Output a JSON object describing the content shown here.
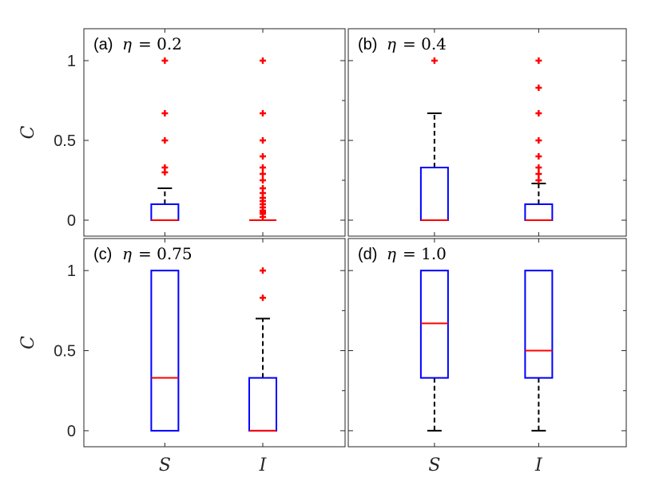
{
  "chart_data": {
    "type": "boxplot",
    "ylabel": "C",
    "categories": [
      "S",
      "I"
    ],
    "ylim": [
      -0.1,
      1.2
    ],
    "yticks": [
      0,
      0.5,
      1
    ],
    "yticklabels": [
      "0",
      "0.5",
      "1"
    ],
    "colors": {
      "box": "#0000ff",
      "median": "#ff0000",
      "whisker": "#000000",
      "outlier": "#ff0000",
      "axes": "#262626"
    },
    "panels": [
      {
        "tag": "(a)",
        "eta_symbol": "η",
        "eta_eq": "= 0.2",
        "boxes": [
          {
            "category": "S",
            "q1": 0,
            "median": 0,
            "q3": 0.1,
            "whisker_low": 0,
            "whisker_high": 0.2,
            "outliers": [
              0.3,
              0.33,
              0.5,
              0.67,
              1.0
            ]
          },
          {
            "category": "I",
            "q1": 0,
            "median": 0,
            "q3": 0,
            "whisker_low": 0,
            "whisker_high": 0,
            "outliers": [
              0.02,
              0.04,
              0.05,
              0.06,
              0.08,
              0.1,
              0.12,
              0.14,
              0.17,
              0.2,
              0.25,
              0.29,
              0.33,
              0.4,
              0.5,
              0.67,
              1.0
            ]
          }
        ]
      },
      {
        "tag": "(b)",
        "eta_symbol": "η",
        "eta_eq": "= 0.4",
        "boxes": [
          {
            "category": "S",
            "q1": 0,
            "median": 0,
            "q3": 0.33,
            "whisker_low": 0,
            "whisker_high": 0.67,
            "outliers": [
              1.0
            ]
          },
          {
            "category": "I",
            "q1": 0,
            "median": 0,
            "q3": 0.1,
            "whisker_low": 0,
            "whisker_high": 0.23,
            "outliers": [
              0.25,
              0.29,
              0.33,
              0.4,
              0.5,
              0.67,
              0.83,
              1.0
            ]
          }
        ]
      },
      {
        "tag": "(c)",
        "eta_symbol": "η",
        "eta_eq": "= 0.75",
        "boxes": [
          {
            "category": "S",
            "q1": 0,
            "median": 0.33,
            "q3": 1.0,
            "whisker_low": 0,
            "whisker_high": 1.0,
            "outliers": []
          },
          {
            "category": "I",
            "q1": 0,
            "median": 0,
            "q3": 0.33,
            "whisker_low": 0,
            "whisker_high": 0.7,
            "outliers": [
              0.83,
              1.0
            ]
          }
        ]
      },
      {
        "tag": "(d)",
        "eta_symbol": "η",
        "eta_eq": "= 1.0",
        "boxes": [
          {
            "category": "S",
            "q1": 0.33,
            "median": 0.67,
            "q3": 1.0,
            "whisker_low": 0,
            "whisker_high": 1.0,
            "outliers": []
          },
          {
            "category": "I",
            "q1": 0.33,
            "median": 0.5,
            "q3": 1.0,
            "whisker_low": 0,
            "whisker_high": 1.0,
            "outliers": []
          }
        ]
      }
    ]
  }
}
